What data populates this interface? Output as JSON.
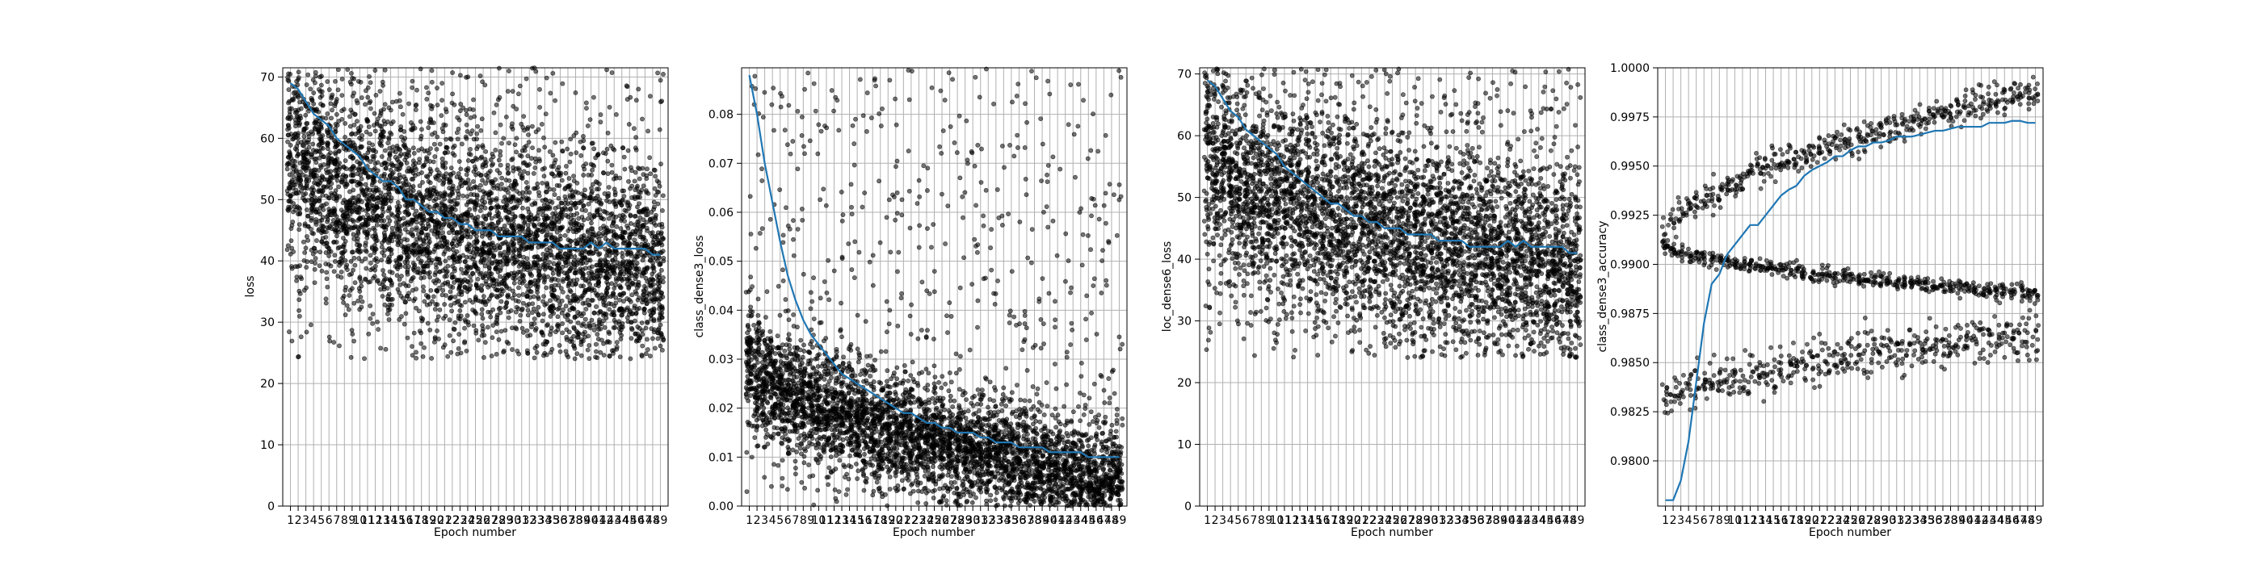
{
  "figure": {
    "style": {
      "background": "#ffffff",
      "point_color": "#000000",
      "line_color": "#1f77b4",
      "grid_color": "#b0b0b0"
    }
  },
  "chart_data": [
    {
      "type": "scatter",
      "xlabel": "Epoch number",
      "ylabel": "loss",
      "x_ticks": [
        "1",
        "2",
        "3",
        "4",
        "5",
        "6",
        "7",
        "8",
        "9",
        "10",
        "11",
        "12",
        "13",
        "14",
        "15",
        "16",
        "17",
        "18",
        "19",
        "20",
        "21",
        "22",
        "23",
        "24",
        "25",
        "26",
        "27",
        "28",
        "29",
        "30",
        "31",
        "32",
        "33",
        "34",
        "35",
        "36",
        "37",
        "38",
        "39",
        "40",
        "41",
        "42",
        "43",
        "44",
        "45",
        "46",
        "47",
        "48",
        "49"
      ],
      "xlim": [
        0,
        50
      ],
      "ylim": [
        0,
        71.5
      ],
      "y_ticks": [
        0,
        10,
        20,
        30,
        40,
        50,
        60,
        70
      ],
      "y_tick_labels": [
        "0",
        "10",
        "20",
        "30",
        "40",
        "50",
        "60",
        "70"
      ],
      "grid": true,
      "scatter_summary": {
        "start_center": 58,
        "end_center": 38,
        "spread": 8.5,
        "floor": 24,
        "ceil": 71.5,
        "points_per_epoch": 95
      },
      "series": [
        {
          "kind": "line",
          "x": [
            1,
            2,
            3,
            4,
            5,
            6,
            7,
            8,
            9,
            10,
            11,
            12,
            13,
            14,
            15,
            16,
            17,
            18,
            19,
            20,
            21,
            22,
            23,
            24,
            25,
            26,
            27,
            28,
            29,
            30,
            31,
            32,
            33,
            34,
            35,
            36,
            37,
            38,
            39,
            40,
            41,
            42,
            43,
            44,
            45,
            46,
            47,
            48,
            49
          ],
          "y": [
            69,
            68,
            66,
            64,
            63,
            62,
            60,
            59,
            58,
            57,
            55,
            54,
            53,
            53,
            52,
            50,
            50,
            49,
            48,
            48,
            47,
            47,
            46,
            46,
            45,
            45,
            45,
            44,
            44,
            44,
            44,
            43,
            43,
            43,
            43,
            42,
            42,
            42,
            42,
            43,
            42,
            43,
            42,
            42,
            42,
            42,
            42,
            41,
            41
          ]
        }
      ]
    },
    {
      "type": "scatter",
      "xlabel": "Epoch number",
      "ylabel": "class_dense3_loss",
      "x_ticks": [
        "1",
        "2",
        "3",
        "4",
        "5",
        "6",
        "7",
        "8",
        "9",
        "10",
        "11",
        "12",
        "13",
        "14",
        "15",
        "16",
        "17",
        "18",
        "19",
        "20",
        "21",
        "22",
        "23",
        "24",
        "25",
        "26",
        "27",
        "28",
        "29",
        "30",
        "31",
        "32",
        "33",
        "34",
        "35",
        "36",
        "37",
        "38",
        "39",
        "40",
        "41",
        "42",
        "43",
        "44",
        "45",
        "46",
        "47",
        "48",
        "49"
      ],
      "xlim": [
        0,
        50
      ],
      "ylim": [
        0,
        0.0895
      ],
      "y_ticks": [
        0,
        0.01,
        0.02,
        0.03,
        0.04,
        0.05,
        0.06,
        0.07,
        0.08
      ],
      "y_tick_labels": [
        "0.00",
        "0.01",
        "0.02",
        "0.03",
        "0.04",
        "0.05",
        "0.06",
        "0.07",
        "0.08"
      ],
      "grid": true,
      "scatter_summary": {
        "start_center": 0.03,
        "end_center": 0.005,
        "spread": 0.006,
        "floor": 0,
        "ceil": 0.0895,
        "points_per_epoch": 95
      },
      "series": [
        {
          "kind": "line",
          "x": [
            1,
            2,
            3,
            4,
            5,
            6,
            7,
            8,
            9,
            10,
            11,
            12,
            13,
            14,
            15,
            16,
            17,
            18,
            19,
            20,
            21,
            22,
            23,
            24,
            25,
            26,
            27,
            28,
            29,
            30,
            31,
            32,
            33,
            34,
            35,
            36,
            37,
            38,
            39,
            40,
            41,
            42,
            43,
            44,
            45,
            46,
            47,
            48,
            49
          ],
          "y": [
            0.088,
            0.08,
            0.07,
            0.062,
            0.054,
            0.047,
            0.042,
            0.038,
            0.035,
            0.033,
            0.031,
            0.029,
            0.027,
            0.026,
            0.025,
            0.024,
            0.023,
            0.022,
            0.021,
            0.02,
            0.019,
            0.019,
            0.018,
            0.017,
            0.017,
            0.016,
            0.016,
            0.015,
            0.015,
            0.015,
            0.014,
            0.014,
            0.013,
            0.013,
            0.013,
            0.012,
            0.012,
            0.012,
            0.012,
            0.011,
            0.011,
            0.011,
            0.011,
            0.011,
            0.01,
            0.01,
            0.01,
            0.01,
            0.01
          ]
        }
      ]
    },
    {
      "type": "scatter",
      "xlabel": "Epoch number",
      "ylabel": "loc_dense6_loss",
      "x_ticks": [
        "1",
        "2",
        "3",
        "4",
        "5",
        "6",
        "7",
        "8",
        "9",
        "10",
        "11",
        "12",
        "13",
        "14",
        "15",
        "16",
        "17",
        "18",
        "19",
        "20",
        "21",
        "22",
        "23",
        "24",
        "25",
        "26",
        "27",
        "28",
        "29",
        "30",
        "31",
        "32",
        "33",
        "34",
        "35",
        "36",
        "37",
        "38",
        "39",
        "40",
        "41",
        "42",
        "43",
        "44",
        "45",
        "46",
        "47",
        "48",
        "49"
      ],
      "xlim": [
        0,
        50
      ],
      "ylim": [
        0,
        71
      ],
      "y_ticks": [
        0,
        10,
        20,
        30,
        40,
        50,
        60,
        70
      ],
      "y_tick_labels": [
        "0",
        "10",
        "20",
        "30",
        "40",
        "50",
        "60",
        "70"
      ],
      "grid": true,
      "scatter_summary": {
        "start_center": 58,
        "end_center": 38,
        "spread": 8.5,
        "floor": 24,
        "ceil": 71,
        "points_per_epoch": 95
      },
      "series": [
        {
          "kind": "line",
          "x": [
            1,
            2,
            3,
            4,
            5,
            6,
            7,
            8,
            9,
            10,
            11,
            12,
            13,
            14,
            15,
            16,
            17,
            18,
            19,
            20,
            21,
            22,
            23,
            24,
            25,
            26,
            27,
            28,
            29,
            30,
            31,
            32,
            33,
            34,
            35,
            36,
            37,
            38,
            39,
            40,
            41,
            42,
            43,
            44,
            45,
            46,
            47,
            48,
            49
          ],
          "y": [
            69,
            68,
            66,
            64,
            63,
            61,
            60,
            59,
            58,
            57,
            55,
            54,
            53,
            52,
            51,
            50,
            49,
            49,
            48,
            47,
            47,
            46,
            46,
            45,
            45,
            45,
            44,
            44,
            44,
            44,
            43,
            43,
            43,
            43,
            42,
            42,
            42,
            42,
            42,
            43,
            42,
            43,
            42,
            42,
            42,
            42,
            42,
            41,
            41
          ]
        }
      ]
    },
    {
      "type": "scatter",
      "xlabel": "Epoch number",
      "ylabel": "class_dense3_accuracy",
      "x_ticks": [
        "1",
        "2",
        "3",
        "4",
        "5",
        "6",
        "7",
        "8",
        "9",
        "10",
        "11",
        "12",
        "13",
        "14",
        "15",
        "16",
        "17",
        "18",
        "19",
        "20",
        "21",
        "22",
        "23",
        "24",
        "25",
        "26",
        "27",
        "28",
        "29",
        "30",
        "31",
        "32",
        "33",
        "34",
        "35",
        "36",
        "37",
        "38",
        "39",
        "40",
        "41",
        "42",
        "43",
        "44",
        "45",
        "46",
        "47",
        "48",
        "49"
      ],
      "xlim": [
        0,
        50
      ],
      "ylim": [
        0.9777,
        1.0
      ],
      "y_ticks": [
        0.98,
        0.9825,
        0.985,
        0.9875,
        0.99,
        0.9925,
        0.995,
        0.9975,
        1.0
      ],
      "y_tick_labels": [
        "0.9800",
        "0.9825",
        "0.9850",
        "0.9875",
        "0.9900",
        "0.9925",
        "0.9950",
        "0.9975",
        "1.0000"
      ],
      "grid": true,
      "scatter_summary": {
        "bands": [
          {
            "start": 0.9915,
            "end": 0.9988,
            "spread": 0.0004
          },
          {
            "start": 0.991,
            "end": 0.9885,
            "spread": 0.0002
          },
          {
            "start": 0.983,
            "end": 0.9865,
            "spread": 0.0006
          }
        ],
        "floor": 0.9777,
        "ceil": 1.0,
        "points_per_epoch": 30
      },
      "series": [
        {
          "kind": "line",
          "x": [
            1,
            2,
            3,
            4,
            5,
            6,
            7,
            8,
            9,
            10,
            11,
            12,
            13,
            14,
            15,
            16,
            17,
            18,
            19,
            20,
            21,
            22,
            23,
            24,
            25,
            26,
            27,
            28,
            29,
            30,
            31,
            32,
            33,
            34,
            35,
            36,
            37,
            38,
            39,
            40,
            41,
            42,
            43,
            44,
            45,
            46,
            47,
            48,
            49
          ],
          "y": [
            0.978,
            0.978,
            0.979,
            0.981,
            0.984,
            0.987,
            0.989,
            0.9895,
            0.9905,
            0.991,
            0.9915,
            0.992,
            0.992,
            0.9925,
            0.993,
            0.9935,
            0.9938,
            0.994,
            0.9945,
            0.9948,
            0.995,
            0.9952,
            0.9955,
            0.9955,
            0.9958,
            0.996,
            0.996,
            0.9962,
            0.9962,
            0.9963,
            0.9965,
            0.9965,
            0.9965,
            0.9966,
            0.9967,
            0.9968,
            0.9968,
            0.9969,
            0.997,
            0.997,
            0.997,
            0.997,
            0.9972,
            0.9972,
            0.9972,
            0.9973,
            0.9973,
            0.9972,
            0.9972
          ]
        }
      ]
    }
  ]
}
